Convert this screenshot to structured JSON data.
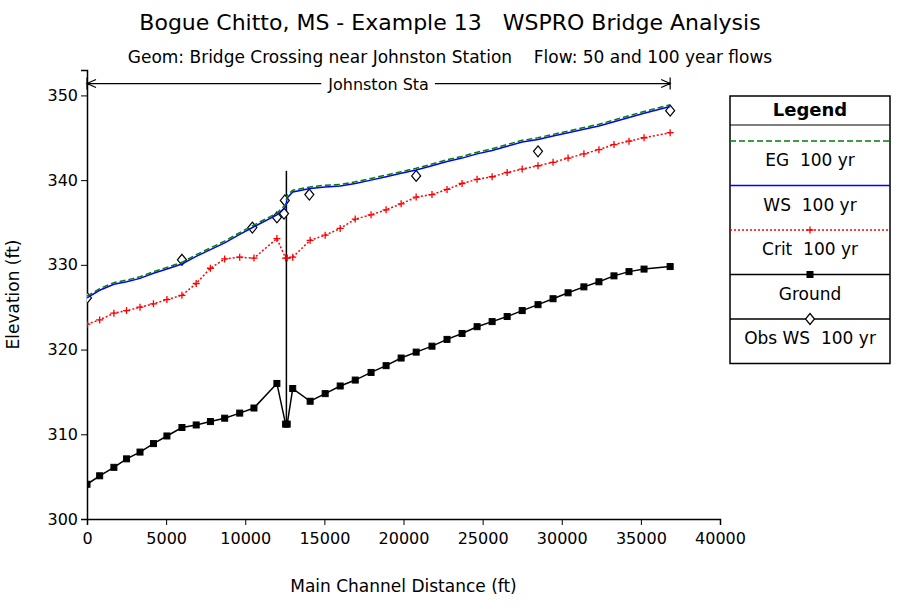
{
  "chart_data": {
    "type": "line",
    "title": "Bogue Chitto, MS - Example 13   WSPRO Bridge Analysis",
    "subtitle": "Geom: Bridge Crossing near Johnston Station    Flow: 50 and 100 year flows",
    "x_label": "Main Channel Distance (ft)",
    "y_label": "Elevation (ft)",
    "legend": "right",
    "legend_title": "Legend",
    "grid": false,
    "xlim": [
      0,
      40000
    ],
    "xticks": [
      0,
      5000,
      10000,
      15000,
      20000,
      25000,
      30000,
      35000,
      40000
    ],
    "ylim": [
      300,
      353
    ],
    "yticks": [
      300,
      310,
      320,
      330,
      340,
      350
    ],
    "annotations": [
      {
        "text": "Johnston Sta",
        "x0": 0,
        "x1": 36850,
        "y": 351.4
      }
    ],
    "x": [
      0,
      800,
      1700,
      2500,
      3350,
      4200,
      5050,
      6000,
      6900,
      7800,
      8700,
      9650,
      10550,
      12000,
      12550,
      12650,
      13000,
      14100,
      15050,
      16000,
      16950,
      17950,
      18900,
      19850,
      20800,
      21800,
      22750,
      23700,
      24650,
      25600,
      26550,
      27500,
      28500,
      29450,
      30400,
      31400,
      32350,
      33300,
      34250,
      35200,
      36850
    ],
    "series": [
      {
        "name": "EG  100 yr",
        "color": "#008000",
        "line_style": "dashed",
        "marker": "none",
        "values": [
          326.3,
          327.2,
          327.9,
          328.2,
          328.6,
          329.2,
          329.7,
          330.3,
          331.2,
          332.0,
          332.8,
          333.8,
          334.7,
          336.1,
          337.1,
          338.2,
          338.8,
          339.2,
          339.4,
          339.5,
          339.8,
          340.2,
          340.6,
          341.0,
          341.4,
          341.9,
          342.4,
          342.8,
          343.3,
          343.7,
          344.2,
          344.7,
          345.0,
          345.4,
          345.8,
          346.2,
          346.6,
          347.1,
          347.6,
          348.1,
          348.9
        ]
      },
      {
        "name": "WS  100 yr",
        "color": "#0000ff",
        "line_style": "solid",
        "marker": "none",
        "values": [
          326.1,
          327.0,
          327.7,
          328.0,
          328.4,
          329.0,
          329.5,
          330.1,
          331.0,
          331.8,
          332.6,
          333.6,
          334.5,
          335.9,
          336.8,
          337.9,
          338.6,
          339.0,
          339.2,
          339.3,
          339.6,
          340.0,
          340.4,
          340.8,
          341.2,
          341.7,
          342.2,
          342.6,
          343.1,
          343.5,
          344.0,
          344.5,
          344.8,
          345.2,
          345.6,
          346.0,
          346.4,
          346.9,
          347.4,
          347.9,
          348.7
        ]
      },
      {
        "name": "Crit  100 yr",
        "color": "#ff0000",
        "line_style": "dotted",
        "marker": "plus",
        "values": [
          323.0,
          323.5,
          324.3,
          324.6,
          325.0,
          325.4,
          325.9,
          326.4,
          327.8,
          329.6,
          330.7,
          330.9,
          330.8,
          333.1,
          330.8,
          330.8,
          330.9,
          332.9,
          333.5,
          334.3,
          335.4,
          335.9,
          336.5,
          337.2,
          338.0,
          338.3,
          338.9,
          339.6,
          340.1,
          340.4,
          340.9,
          341.3,
          341.7,
          342.1,
          342.6,
          343.1,
          343.6,
          344.2,
          344.6,
          345.0,
          345.6
        ]
      },
      {
        "name": "Ground",
        "color": "#000000",
        "line_style": "solid",
        "marker": "square",
        "values": [
          304.1,
          305.1,
          306.1,
          307.1,
          307.9,
          308.9,
          309.8,
          310.8,
          311.1,
          311.5,
          311.9,
          312.5,
          313.1,
          316.0,
          311.2,
          311.2,
          315.4,
          313.9,
          314.8,
          315.7,
          316.4,
          317.3,
          318.1,
          319.0,
          319.7,
          320.4,
          321.2,
          321.9,
          322.7,
          323.3,
          323.9,
          324.6,
          325.3,
          326.0,
          326.7,
          327.4,
          328.0,
          328.7,
          329.2,
          329.5,
          329.8
        ]
      },
      {
        "name": "Obs WS  100 yr",
        "color": "#000000",
        "line_style": "none",
        "marker": "diamond",
        "x": [
          0,
          6000,
          10450,
          12000,
          12450,
          12500,
          14050,
          20800,
          28500,
          36850
        ],
        "values": [
          326.1,
          330.6,
          334.4,
          335.6,
          336.05,
          337.6,
          338.3,
          340.5,
          343.4,
          348.2
        ]
      },
      {
        "color": "#000000",
        "line_style": "solid",
        "marker": "none",
        "x": [
          12600,
          12600
        ],
        "values": [
          311.2,
          341.1
        ]
      }
    ]
  }
}
